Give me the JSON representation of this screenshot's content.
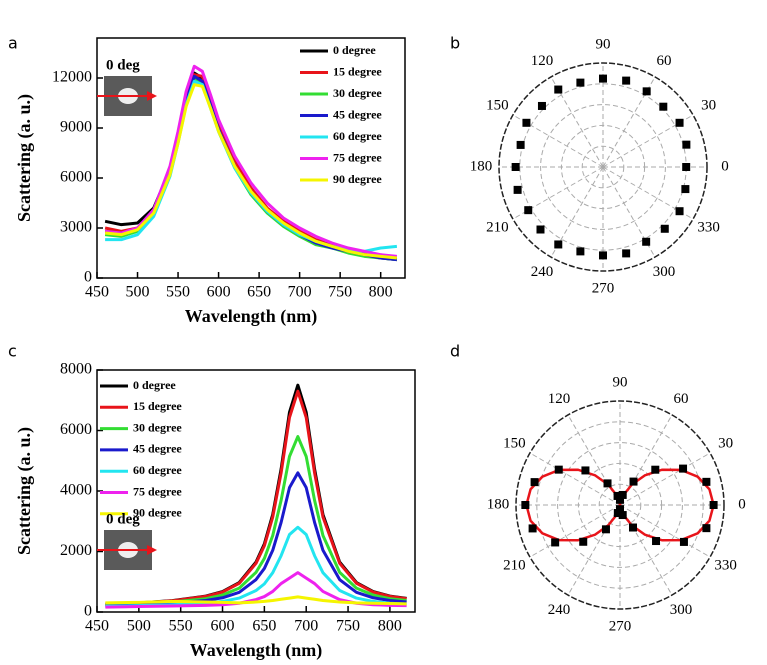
{
  "chart_data": [
    {
      "type": "line",
      "panel_label": "a",
      "xlabel": "Wavelength (nm)",
      "ylabel": "Scattering (a. u.)",
      "inset_label": "0 deg",
      "xlim": [
        450,
        830
      ],
      "xticks": [
        450,
        500,
        550,
        600,
        650,
        700,
        750,
        800
      ],
      "ylim": [
        0,
        14400
      ],
      "yticks": [
        0,
        3000,
        6000,
        9000,
        12000
      ],
      "x": [
        460,
        480,
        500,
        520,
        540,
        550,
        560,
        570,
        580,
        590,
        600,
        620,
        640,
        660,
        680,
        700,
        720,
        740,
        760,
        780,
        800,
        820
      ],
      "series": [
        {
          "name": "0 degree",
          "color": "#000000",
          "values": [
            3400,
            3200,
            3300,
            4200,
            6500,
            8500,
            10800,
            12300,
            12000,
            10500,
            9000,
            6800,
            5200,
            4100,
            3300,
            2700,
            2200,
            1900,
            1600,
            1400,
            1200,
            1100
          ]
        },
        {
          "name": "15 degree",
          "color": "#e8141a",
          "values": [
            3000,
            2800,
            3000,
            4000,
            6400,
            8400,
            10700,
            12200,
            12100,
            10700,
            9200,
            7000,
            5400,
            4200,
            3400,
            2800,
            2300,
            2000,
            1700,
            1500,
            1300,
            1200
          ]
        },
        {
          "name": "30 degree",
          "color": "#33dd33",
          "values": [
            2600,
            2500,
            2800,
            3800,
            6200,
            8200,
            10500,
            12000,
            11700,
            10300,
            8800,
            6600,
            5000,
            3900,
            3100,
            2500,
            2000,
            1800,
            1500,
            1300,
            1200,
            1100
          ]
        },
        {
          "name": "45 degree",
          "color": "#1a1acc",
          "values": [
            2800,
            2700,
            2900,
            3900,
            6300,
            8300,
            10600,
            12100,
            11800,
            10400,
            8900,
            6700,
            5100,
            4000,
            3200,
            2600,
            2100,
            1800,
            1600,
            1400,
            1200,
            1100
          ]
        },
        {
          "name": "60 degree",
          "color": "#22e5f0",
          "values": [
            2300,
            2300,
            2600,
            3700,
            6100,
            8100,
            10400,
            11800,
            11600,
            10200,
            8800,
            6600,
            5100,
            4000,
            3200,
            2600,
            2200,
            1900,
            1700,
            1600,
            1800,
            1900
          ]
        },
        {
          "name": "75 degree",
          "color": "#ee22ee",
          "values": [
            2800,
            2700,
            3000,
            4100,
            6700,
            8800,
            11200,
            12700,
            12400,
            11000,
            9500,
            7300,
            5700,
            4500,
            3600,
            3000,
            2500,
            2100,
            1800,
            1600,
            1400,
            1300
          ]
        },
        {
          "name": "90 degree",
          "color": "#f5f500",
          "values": [
            2700,
            2600,
            2900,
            3900,
            6200,
            8100,
            10300,
            11600,
            11500,
            10200,
            8800,
            6700,
            5200,
            4100,
            3300,
            2700,
            2200,
            1900,
            1600,
            1400,
            1300,
            1200
          ]
        }
      ]
    },
    {
      "type": "polar",
      "panel_label": "b",
      "rlim": [
        0,
        1
      ],
      "rticks": [
        0.2,
        0.4,
        0.6,
        0.8,
        1
      ],
      "thetaticks": [
        0,
        30,
        60,
        90,
        120,
        150,
        180,
        210,
        240,
        270,
        300,
        330
      ],
      "points": {
        "color": "#000000",
        "theta": [
          0,
          15,
          30,
          45,
          60,
          75,
          90,
          105,
          120,
          135,
          150,
          165,
          180,
          195,
          210,
          225,
          240,
          255,
          270,
          285,
          300,
          315,
          330,
          345
        ],
        "r": [
          0.8,
          0.83,
          0.85,
          0.82,
          0.84,
          0.86,
          0.85,
          0.84,
          0.86,
          0.83,
          0.85,
          0.82,
          0.84,
          0.85,
          0.83,
          0.85,
          0.86,
          0.84,
          0.85,
          0.86,
          0.83,
          0.84,
          0.85,
          0.82
        ]
      }
    },
    {
      "type": "line",
      "panel_label": "c",
      "xlabel": "Wavelength (nm)",
      "ylabel": "Scattering (a. u.)",
      "inset_label": "0 deg",
      "xlim": [
        450,
        830
      ],
      "xticks": [
        450,
        500,
        550,
        600,
        650,
        700,
        750,
        800
      ],
      "ylim": [
        0,
        8000
      ],
      "yticks": [
        0,
        2000,
        4000,
        6000,
        8000
      ],
      "x": [
        460,
        500,
        540,
        580,
        600,
        620,
        640,
        650,
        660,
        670,
        680,
        690,
        700,
        710,
        720,
        740,
        760,
        780,
        800,
        820
      ],
      "series": [
        {
          "name": "0 degree",
          "color": "#000000",
          "values": [
            260,
            300,
            375,
            525,
            675,
            975,
            1650,
            2250,
            3225,
            4725,
            6600,
            7500,
            6600,
            4725,
            3225,
            1650,
            975,
            675,
            525,
            450
          ]
        },
        {
          "name": "15 degree",
          "color": "#e8141a",
          "values": [
            250,
            290,
            370,
            515,
            660,
            950,
            1610,
            2190,
            3140,
            4600,
            6430,
            7300,
            6430,
            4600,
            3140,
            1610,
            950,
            660,
            515,
            440
          ]
        },
        {
          "name": "30 degree",
          "color": "#33dd33",
          "values": [
            230,
            260,
            330,
            440,
            560,
            790,
            1310,
            1770,
            2530,
            3690,
            5140,
            5800,
            5140,
            3690,
            2530,
            1310,
            790,
            560,
            440,
            380
          ]
        },
        {
          "name": "45 degree",
          "color": "#1a1acc",
          "values": [
            200,
            240,
            290,
            380,
            470,
            650,
            1070,
            1440,
            2040,
            2960,
            4110,
            4600,
            4110,
            2960,
            2040,
            1070,
            650,
            470,
            380,
            330
          ]
        },
        {
          "name": "60 degree",
          "color": "#22e5f0",
          "values": [
            190,
            210,
            240,
            290,
            350,
            460,
            710,
            930,
            1300,
            1860,
            2560,
            2800,
            2560,
            1860,
            1300,
            710,
            460,
            350,
            290,
            260
          ]
        },
        {
          "name": "75 degree",
          "color": "#ee22ee",
          "values": [
            160,
            180,
            200,
            220,
            240,
            290,
            410,
            510,
            680,
            940,
            1120,
            1300,
            1120,
            940,
            680,
            410,
            290,
            240,
            220,
            210
          ]
        },
        {
          "name": "90 degree",
          "color": "#f5f500",
          "values": [
            300,
            320,
            350,
            330,
            320,
            300,
            330,
            350,
            380,
            420,
            460,
            500,
            460,
            420,
            380,
            330,
            300,
            290,
            280,
            270
          ]
        }
      ]
    },
    {
      "type": "polar",
      "panel_label": "d",
      "rlim": [
        0,
        1
      ],
      "rticks": [
        0.2,
        0.4,
        0.6,
        0.8,
        1
      ],
      "thetaticks": [
        0,
        30,
        60,
        90,
        120,
        150,
        180,
        210,
        240,
        270,
        300,
        330
      ],
      "points": {
        "color": "#000000",
        "theta": [
          0,
          15,
          30,
          45,
          60,
          75,
          90,
          105,
          120,
          135,
          150,
          165,
          180,
          195,
          210,
          225,
          240,
          255,
          270,
          285,
          300,
          315,
          330,
          345
        ],
        "r": [
          0.9,
          0.86,
          0.7,
          0.48,
          0.26,
          0.1,
          0.05,
          0.09,
          0.24,
          0.47,
          0.68,
          0.85,
          0.91,
          0.87,
          0.72,
          0.5,
          0.27,
          0.08,
          0.04,
          0.1,
          0.25,
          0.49,
          0.71,
          0.86
        ]
      },
      "fit": {
        "color": "#e8141a",
        "theta": [
          0,
          10,
          20,
          30,
          40,
          50,
          60,
          70,
          80,
          90,
          100,
          110,
          120,
          130,
          140,
          150,
          160,
          170,
          180,
          190,
          200,
          210,
          220,
          230,
          240,
          250,
          260,
          270,
          280,
          290,
          300,
          310,
          320,
          330,
          340,
          350
        ],
        "r": [
          0.9,
          0.873,
          0.795,
          0.675,
          0.528,
          0.372,
          0.225,
          0.105,
          0.027,
          0,
          0.027,
          0.105,
          0.225,
          0.372,
          0.528,
          0.675,
          0.795,
          0.873,
          0.9,
          0.873,
          0.795,
          0.675,
          0.528,
          0.372,
          0.225,
          0.105,
          0.027,
          0,
          0.027,
          0.105,
          0.225,
          0.372,
          0.528,
          0.675,
          0.795,
          0.873
        ]
      }
    }
  ]
}
